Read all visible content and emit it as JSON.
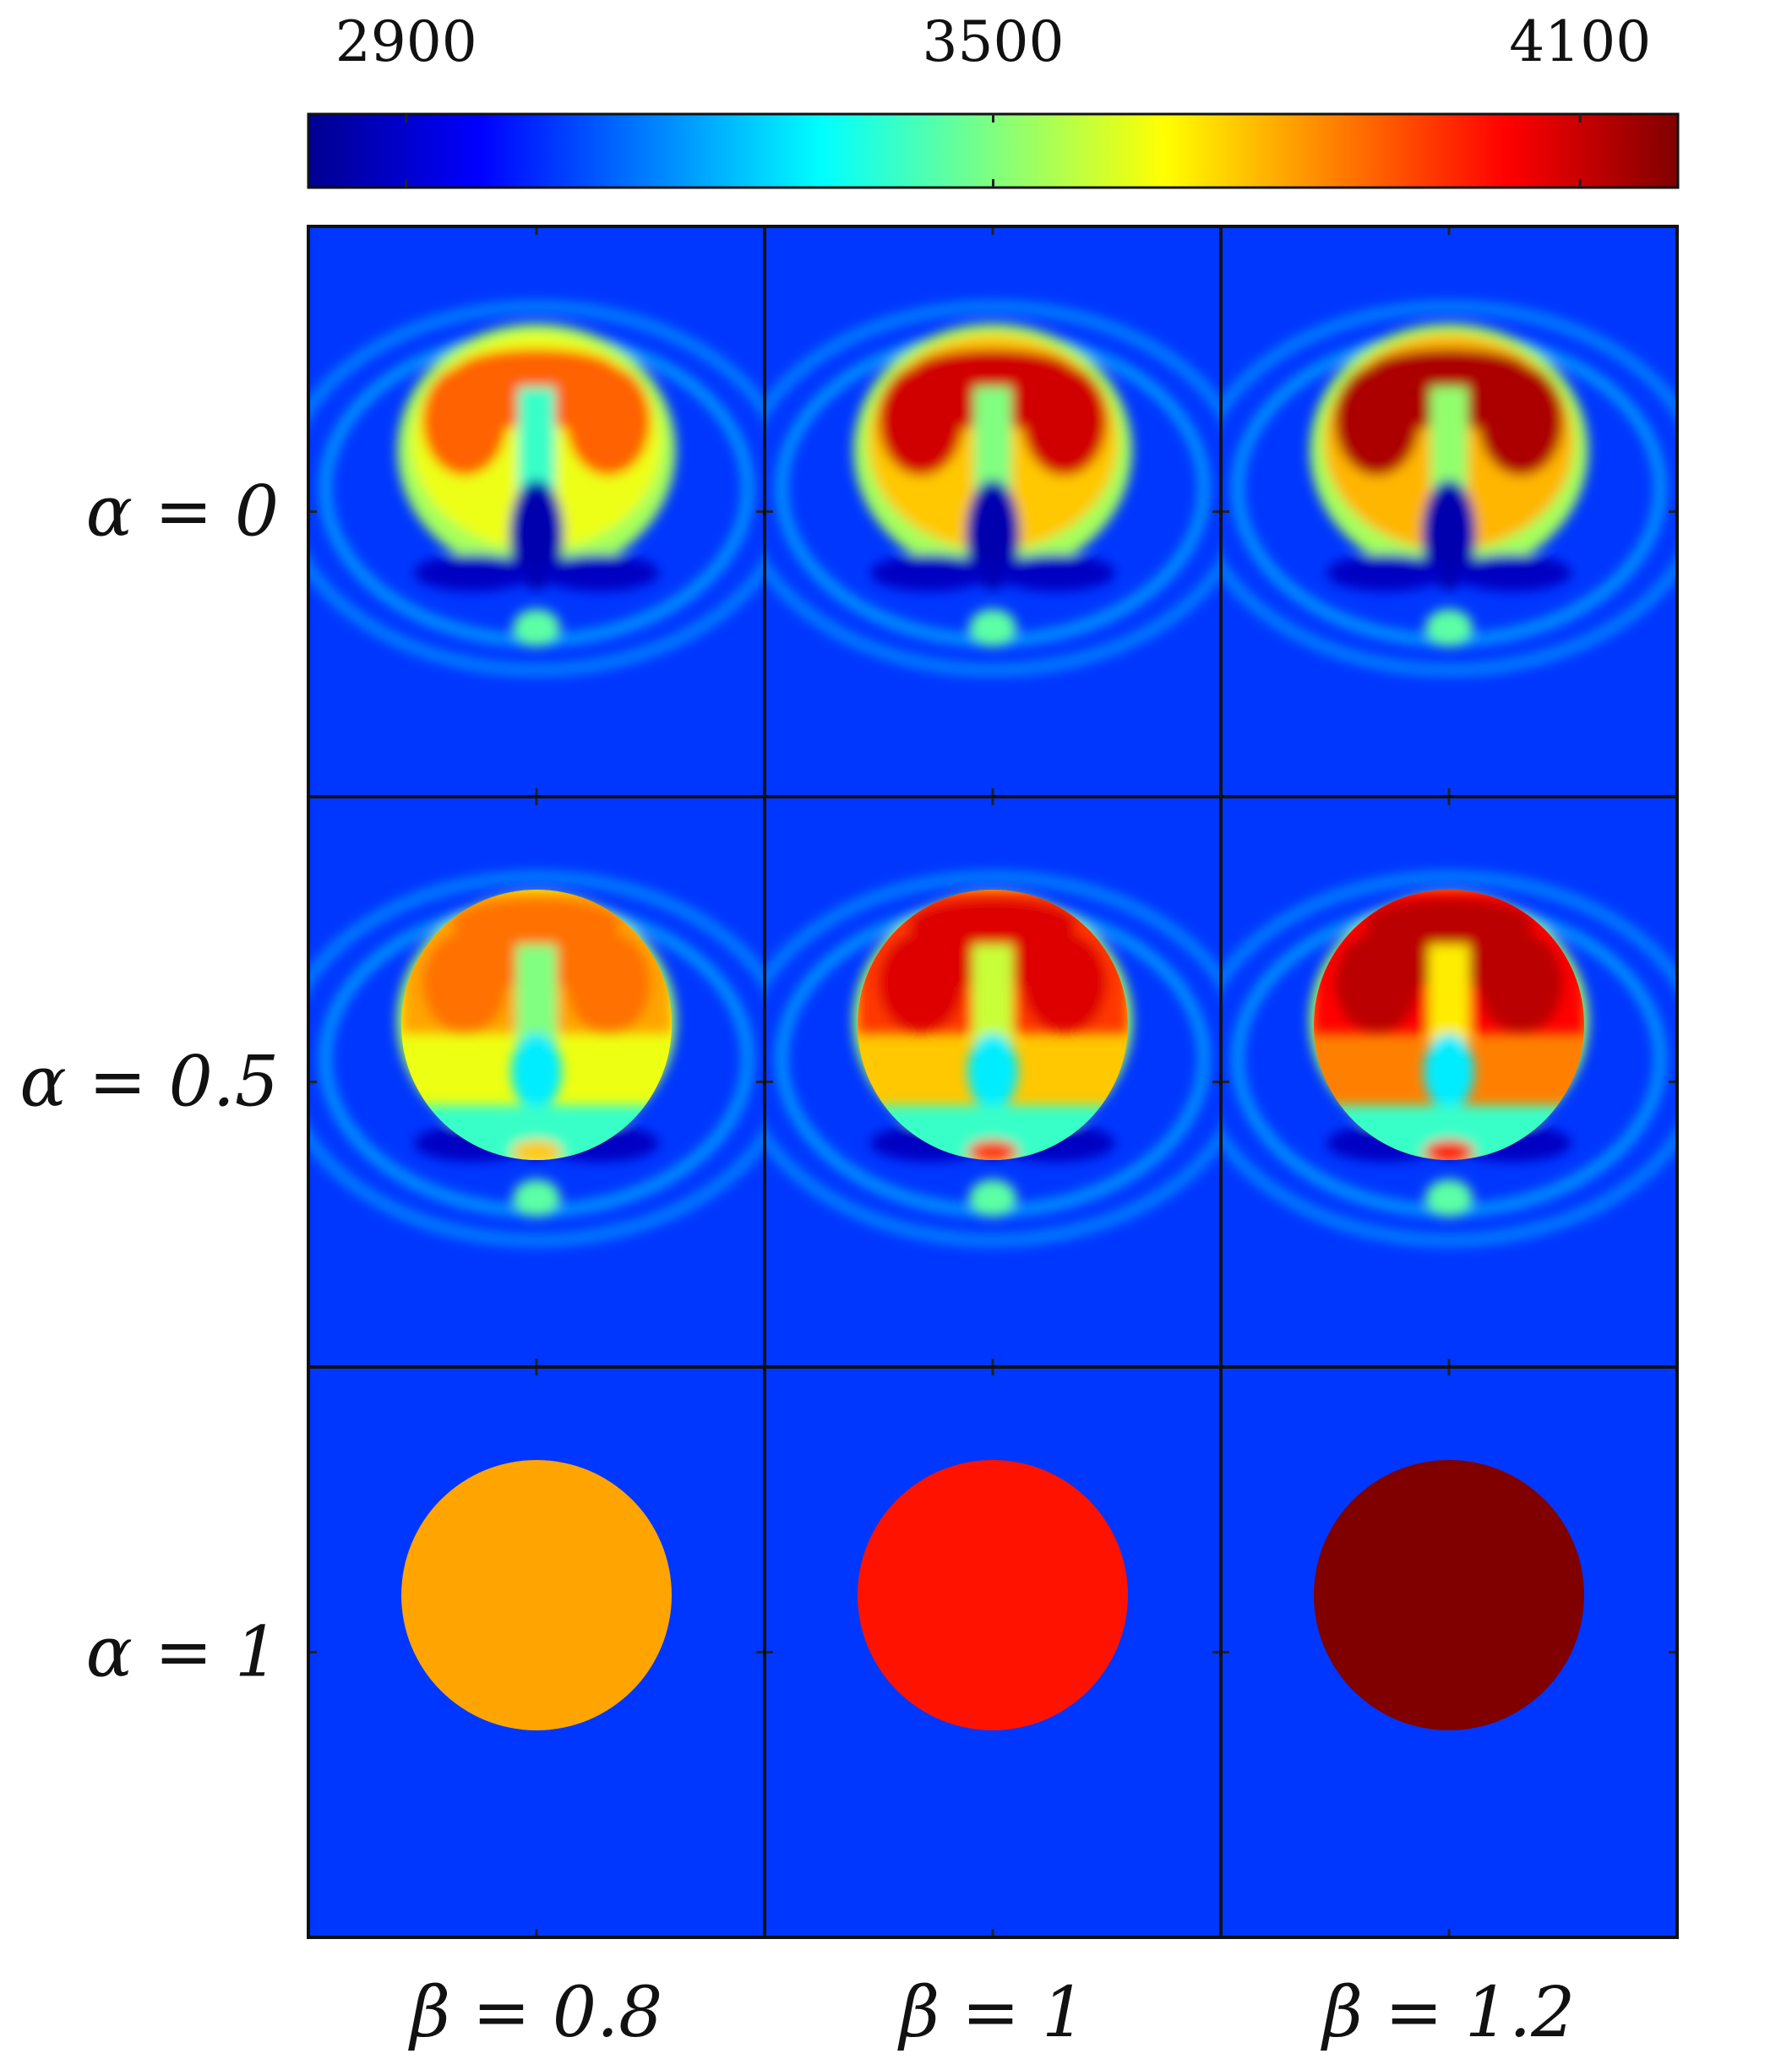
{
  "chart_data": {
    "type": "heatmap",
    "colorbar": {
      "colormap": "jet",
      "min": 2800,
      "max": 4200,
      "ticks": [
        2900,
        3500,
        4100
      ],
      "tick_labels": [
        "2900",
        "3500",
        "4100"
      ],
      "placement": "top"
    },
    "rows": [
      {
        "label": "α = 0",
        "alpha": 0
      },
      {
        "label": "α = 0.5",
        "alpha": 0.5
      },
      {
        "label": "α = 1",
        "alpha": 1
      }
    ],
    "columns": [
      {
        "label": "β = 0.8",
        "beta": 0.8
      },
      {
        "label": "β = 1",
        "beta": 1
      },
      {
        "label": "β = 1.2",
        "beta": 1.2
      }
    ],
    "background_value": 3050,
    "panels": [
      {
        "row": 0,
        "col": 0,
        "kind": "reconstruction",
        "peak_value": 3950,
        "disc_value": null
      },
      {
        "row": 0,
        "col": 1,
        "kind": "reconstruction",
        "peak_value": 4150,
        "disc_value": null
      },
      {
        "row": 0,
        "col": 2,
        "kind": "reconstruction",
        "peak_value": 4200,
        "disc_value": null
      },
      {
        "row": 1,
        "col": 0,
        "kind": "blended",
        "peak_value": 3950,
        "disc_value": 3650
      },
      {
        "row": 1,
        "col": 1,
        "kind": "blended",
        "peak_value": 4150,
        "disc_value": 3750
      },
      {
        "row": 1,
        "col": 2,
        "kind": "blended",
        "peak_value": 4200,
        "disc_value": 3850
      },
      {
        "row": 2,
        "col": 0,
        "kind": "uniform-disc",
        "peak_value": null,
        "disc_value": 3800
      },
      {
        "row": 2,
        "col": 1,
        "kind": "uniform-disc",
        "peak_value": null,
        "disc_value": 4000
      },
      {
        "row": 2,
        "col": 2,
        "kind": "uniform-disc",
        "peak_value": null,
        "disc_value": 4200
      }
    ]
  }
}
